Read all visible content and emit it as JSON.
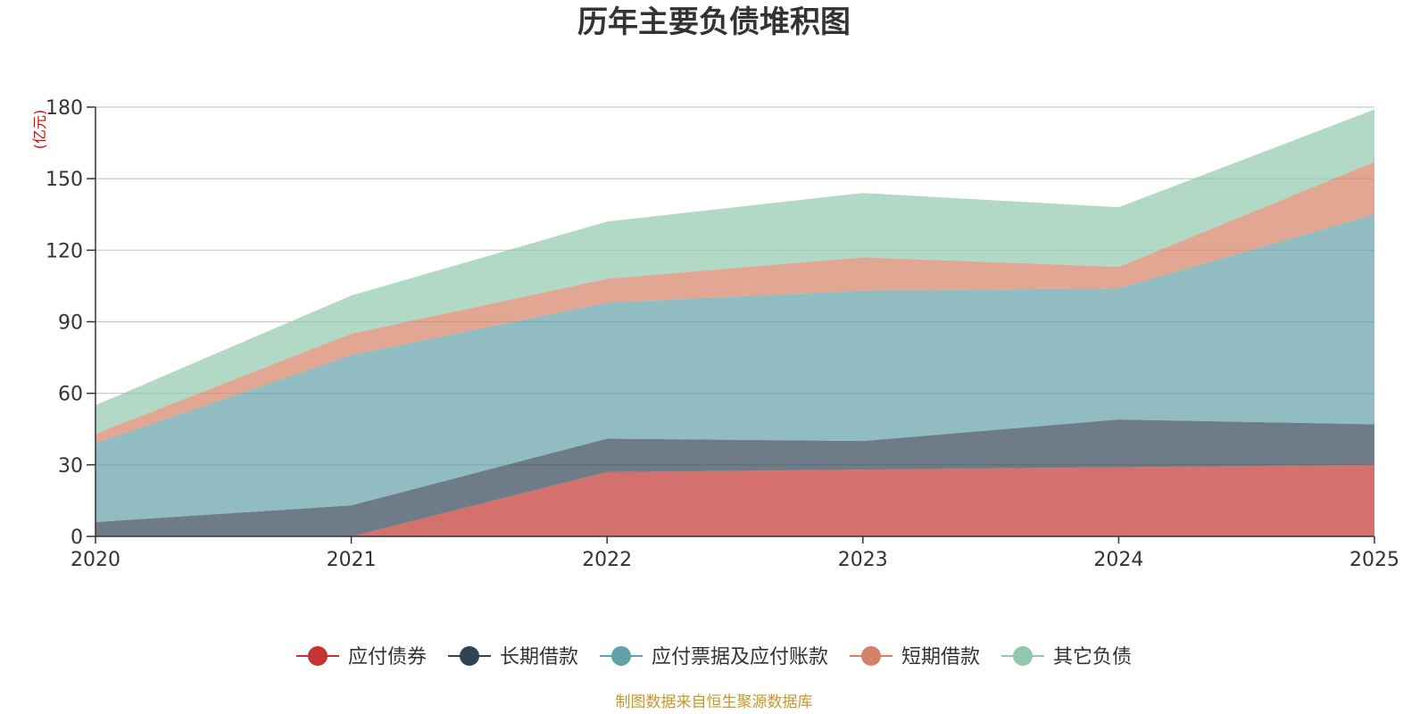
{
  "chart_data": {
    "type": "area",
    "stacked": true,
    "title": "历年主要负债堆积图",
    "ylabel": "(亿元)",
    "xlabel": "",
    "ylim": [
      0,
      180
    ],
    "yticks": [
      0,
      30,
      60,
      90,
      120,
      150,
      180
    ],
    "categories": [
      "2020",
      "2021",
      "2022",
      "2023",
      "2024",
      "2025"
    ],
    "series": [
      {
        "name": "应付债券",
        "color": "#c23531",
        "values": [
          0,
          0,
          27,
          28,
          29,
          30
        ]
      },
      {
        "name": "长期借款",
        "color": "#2f4554",
        "values": [
          6,
          13,
          14,
          12,
          20,
          17
        ]
      },
      {
        "name": "应付票据及应付账款",
        "color": "#61a0a8",
        "values": [
          33,
          63,
          57,
          63,
          55,
          88
        ]
      },
      {
        "name": "短期借款",
        "color": "#d48265",
        "values": [
          4,
          9,
          10,
          14,
          9,
          22
        ]
      },
      {
        "name": "其它负债",
        "color": "#91c7ae",
        "values": [
          12,
          16,
          24,
          27,
          25,
          22
        ]
      }
    ],
    "legend_position": "bottom",
    "grid": true,
    "source": "制图数据来自恒生聚源数据库"
  }
}
